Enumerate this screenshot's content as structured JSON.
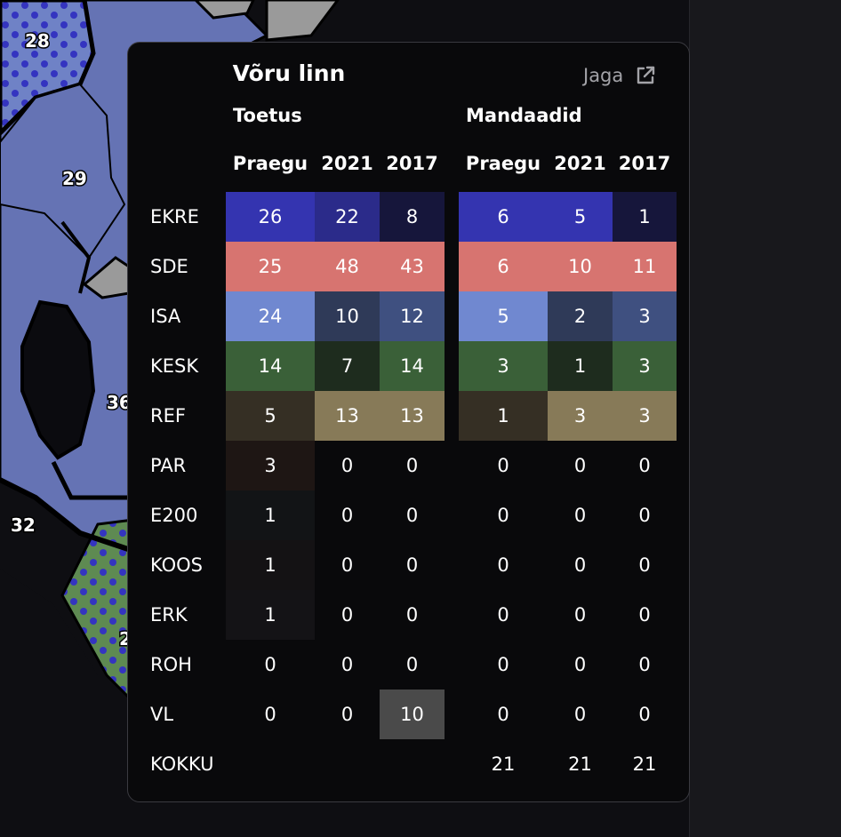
{
  "map": {
    "labels": [
      "28",
      "29",
      "36",
      "32",
      "2"
    ]
  },
  "panel": {
    "title": "Võru linn",
    "share_label": "Jaga",
    "section_support": "Toetus",
    "section_seats": "Mandaadid",
    "columns": [
      "Praegu",
      "2021",
      "2017"
    ],
    "rows": [
      {
        "party": "EKRE",
        "support": [
          "26",
          "22",
          "8"
        ],
        "seats": [
          "6",
          "5",
          "1"
        ]
      },
      {
        "party": "SDE",
        "support": [
          "25",
          "48",
          "43"
        ],
        "seats": [
          "6",
          "10",
          "11"
        ]
      },
      {
        "party": "ISA",
        "support": [
          "24",
          "10",
          "12"
        ],
        "seats": [
          "5",
          "2",
          "3"
        ]
      },
      {
        "party": "KESK",
        "support": [
          "14",
          "7",
          "14"
        ],
        "seats": [
          "3",
          "1",
          "3"
        ]
      },
      {
        "party": "REF",
        "support": [
          "5",
          "13",
          "13"
        ],
        "seats": [
          "1",
          "3",
          "3"
        ]
      },
      {
        "party": "PAR",
        "support": [
          "3",
          "0",
          "0"
        ],
        "seats": [
          "0",
          "0",
          "0"
        ]
      },
      {
        "party": "E200",
        "support": [
          "1",
          "0",
          "0"
        ],
        "seats": [
          "0",
          "0",
          "0"
        ]
      },
      {
        "party": "KOOS",
        "support": [
          "1",
          "0",
          "0"
        ],
        "seats": [
          "0",
          "0",
          "0"
        ]
      },
      {
        "party": "ERK",
        "support": [
          "1",
          "0",
          "0"
        ],
        "seats": [
          "0",
          "0",
          "0"
        ]
      },
      {
        "party": "ROH",
        "support": [
          "0",
          "0",
          "0"
        ],
        "seats": [
          "0",
          "0",
          "0"
        ]
      },
      {
        "party": "VL",
        "support": [
          "0",
          "0",
          "10"
        ],
        "seats": [
          "0",
          "0",
          "0"
        ]
      }
    ],
    "total_label": "KOKKU",
    "totals": [
      "21",
      "21",
      "21"
    ]
  },
  "colors": {
    "support": [
      [
        "#3434b0",
        "#2b2b8a",
        "#16163b"
      ],
      [
        "#d77470",
        "#d77470",
        "#d77470"
      ],
      [
        "#7088d0",
        "#2f3a58",
        "#3f5080"
      ],
      [
        "#3a6038",
        "#1e2c1e",
        "#3a6038"
      ],
      [
        "#352f24",
        "#877a58",
        "#877a58"
      ],
      [
        "#1e1614",
        "",
        ""
      ],
      [
        "#121416",
        "",
        ""
      ],
      [
        "#141214",
        "",
        ""
      ],
      [
        "#141316",
        "",
        ""
      ],
      [
        "",
        "",
        ""
      ],
      [
        "",
        "",
        "#4a4a4a"
      ]
    ],
    "seats": [
      [
        "#3434b0",
        "#3434b0",
        "#16163b"
      ],
      [
        "#d77470",
        "#d77470",
        "#d77470"
      ],
      [
        "#7088d0",
        "#2f3a58",
        "#3f5080"
      ],
      [
        "#3a6038",
        "#1e2c1e",
        "#3a6038"
      ],
      [
        "#352f24",
        "#877a58",
        "#877a58"
      ],
      [
        "",
        "",
        ""
      ],
      [
        "",
        "",
        ""
      ],
      [
        "",
        "",
        ""
      ],
      [
        "",
        "",
        ""
      ],
      [
        "",
        "",
        ""
      ],
      [
        "",
        "",
        ""
      ]
    ]
  }
}
